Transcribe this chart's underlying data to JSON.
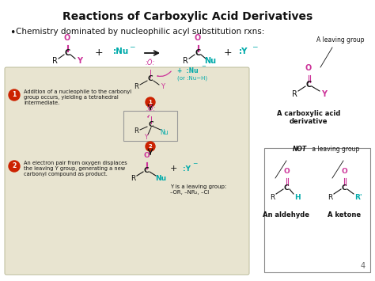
{
  "title": "Reactions of Carboxylic Acid Derivatives",
  "subtitle": "Chemistry dominated by nucleophilic acyl substitution rxns:",
  "background_color": "#ffffff",
  "beige_box_color": "#e8e4d0",
  "pink": "#cc3399",
  "teal": "#00aaaa",
  "black": "#111111",
  "red_num": "#cc2200",
  "step1_text": "Addition of a nucleophile to the carbonyl\ngroup occurs, yielding a tetrahedral\nintermediate.",
  "step2_text": "An electron pair from oxygen displaces\nthe leaving Y group, generating a new\ncarbonyl compound as product.",
  "leaving_group_note": "Y is a leaving group:\n–OR, –NR₂, –Cl",
  "aldehyde_label": "An aldehyde",
  "ketone_label": "A ketone",
  "carboxylic_label": "A carboxylic acid\nderivative",
  "not_leaving_label": "NOT a leaving group",
  "page_number": "4"
}
